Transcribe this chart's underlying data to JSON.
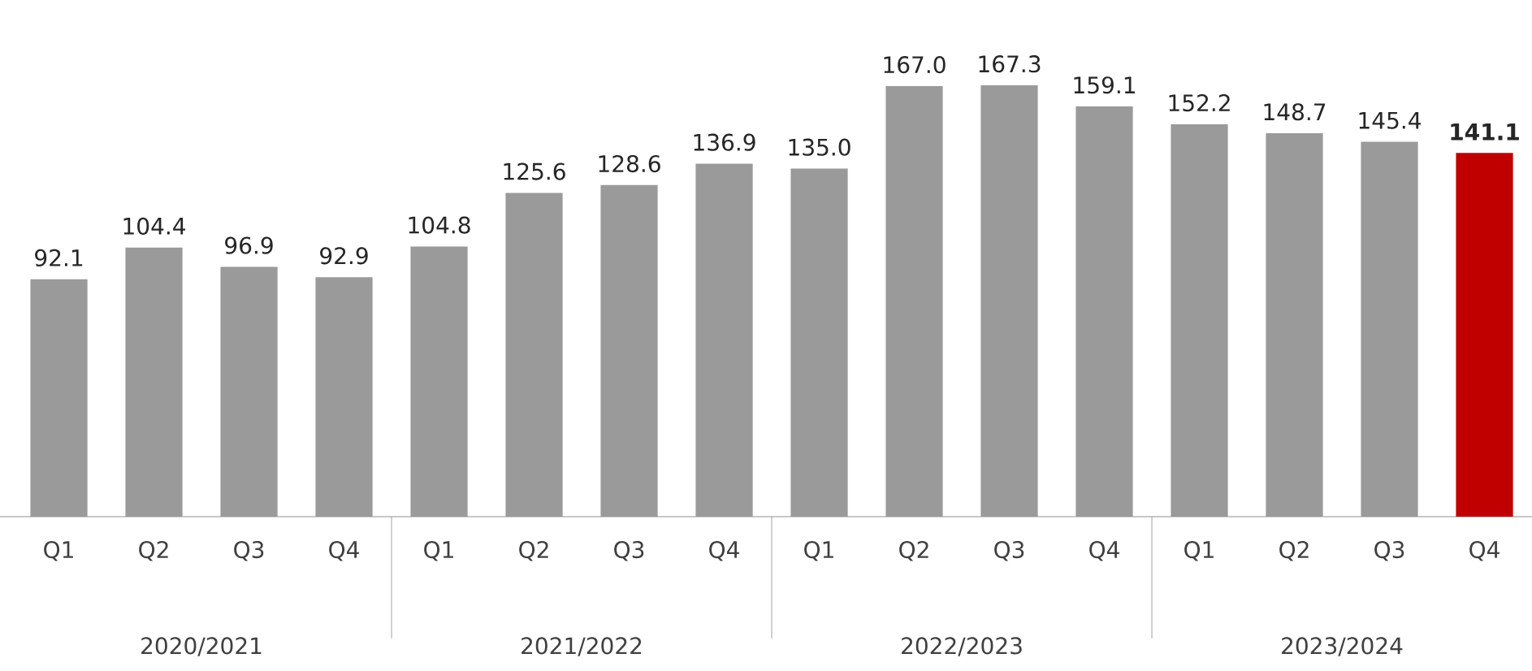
{
  "chart_data": {
    "type": "bar",
    "categories": [
      "Q1",
      "Q2",
      "Q3",
      "Q4",
      "Q1",
      "Q2",
      "Q3",
      "Q4",
      "Q1",
      "Q2",
      "Q3",
      "Q4",
      "Q1",
      "Q2",
      "Q3",
      "Q4"
    ],
    "values": [
      92.1,
      104.4,
      96.9,
      92.9,
      104.8,
      125.6,
      128.6,
      136.9,
      135.0,
      167.0,
      167.3,
      159.1,
      152.2,
      148.7,
      145.4,
      141.1
    ],
    "value_labels": [
      "92.1",
      "104.4",
      "96.9",
      "92.9",
      "104.8",
      "125.6",
      "128.6",
      "136.9",
      "135.0",
      "167.0",
      "167.3",
      "159.1",
      "152.2",
      "148.7",
      "145.4",
      "**141.1**"
    ],
    "colors": [
      "#9a9a9a",
      "#9a9a9a",
      "#9a9a9a",
      "#9a9a9a",
      "#9a9a9a",
      "#9a9a9a",
      "#9a9a9a",
      "#9a9a9a",
      "#9a9a9a",
      "#9a9a9a",
      "#9a9a9a",
      "#9a9a9a",
      "#9a9a9a",
      "#9a9a9a",
      "#9a9a9a",
      "#c00000"
    ],
    "annotations": [
      "2020/2021",
      "2021/2022",
      "2022/2023",
      "2023/2024"
    ]
  }
}
